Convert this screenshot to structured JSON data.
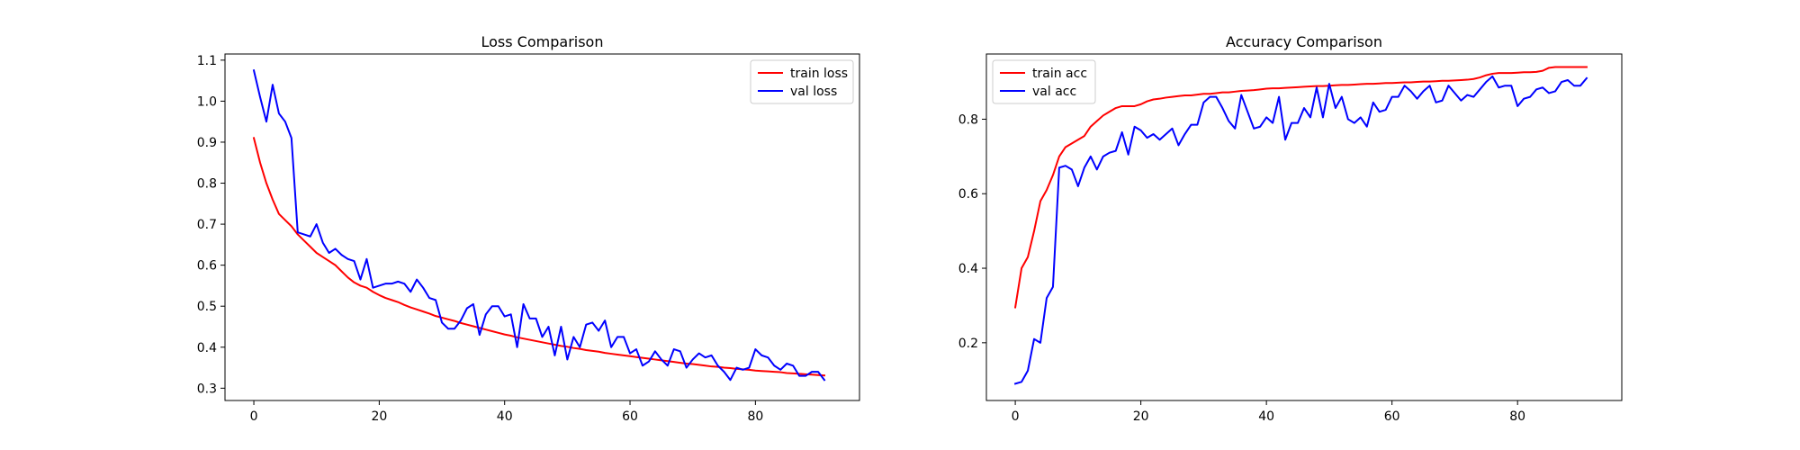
{
  "chart_data": [
    {
      "type": "line",
      "title": "Loss Comparison",
      "xlabel": "",
      "ylabel": "",
      "xlim": [
        -4.6,
        96.6
      ],
      "ylim": [
        0.27,
        1.115
      ],
      "xticks": [
        0,
        20,
        40,
        60,
        80
      ],
      "yticks": [
        0.3,
        0.4,
        0.5,
        0.6,
        0.7,
        0.8,
        0.9,
        1.0,
        1.1
      ],
      "ytick_labels": [
        "0.3",
        "0.4",
        "0.5",
        "0.6",
        "0.7",
        "0.8",
        "0.9",
        "1.0",
        "1.1"
      ],
      "grid": false,
      "legend": "top-right",
      "series": [
        {
          "name": "train loss",
          "color": "#ff0000",
          "x": [
            0,
            1,
            2,
            3,
            4,
            5,
            6,
            7,
            8,
            9,
            10,
            11,
            12,
            13,
            14,
            15,
            16,
            17,
            18,
            19,
            20,
            21,
            22,
            23,
            24,
            25,
            26,
            27,
            28,
            29,
            30,
            31,
            32,
            33,
            34,
            35,
            36,
            37,
            38,
            39,
            40,
            41,
            42,
            43,
            44,
            45,
            46,
            47,
            48,
            49,
            50,
            51,
            52,
            53,
            54,
            55,
            56,
            57,
            58,
            59,
            60,
            61,
            62,
            63,
            64,
            65,
            66,
            67,
            68,
            69,
            70,
            71,
            72,
            73,
            74,
            75,
            76,
            77,
            78,
            79,
            80,
            81,
            82,
            83,
            84,
            85,
            86,
            87,
            88,
            89,
            90,
            91
          ],
          "y": [
            0.91,
            0.85,
            0.8,
            0.76,
            0.725,
            0.71,
            0.695,
            0.675,
            0.66,
            0.645,
            0.63,
            0.62,
            0.61,
            0.6,
            0.585,
            0.57,
            0.558,
            0.55,
            0.545,
            0.535,
            0.527,
            0.52,
            0.515,
            0.51,
            0.503,
            0.497,
            0.492,
            0.487,
            0.482,
            0.476,
            0.472,
            0.468,
            0.464,
            0.459,
            0.455,
            0.451,
            0.447,
            0.443,
            0.439,
            0.435,
            0.431,
            0.428,
            0.424,
            0.421,
            0.418,
            0.415,
            0.412,
            0.409,
            0.406,
            0.403,
            0.401,
            0.398,
            0.396,
            0.393,
            0.391,
            0.389,
            0.386,
            0.384,
            0.382,
            0.38,
            0.378,
            0.376,
            0.374,
            0.372,
            0.37,
            0.368,
            0.366,
            0.364,
            0.362,
            0.36,
            0.359,
            0.357,
            0.355,
            0.353,
            0.352,
            0.35,
            0.349,
            0.347,
            0.346,
            0.345,
            0.343,
            0.342,
            0.341,
            0.34,
            0.339,
            0.337,
            0.336,
            0.335,
            0.334,
            0.333,
            0.332,
            0.331
          ]
        },
        {
          "name": "val loss",
          "color": "#0000ff",
          "x": [
            0,
            1,
            2,
            3,
            4,
            5,
            6,
            7,
            8,
            9,
            10,
            11,
            12,
            13,
            14,
            15,
            16,
            17,
            18,
            19,
            20,
            21,
            22,
            23,
            24,
            25,
            26,
            27,
            28,
            29,
            30,
            31,
            32,
            33,
            34,
            35,
            36,
            37,
            38,
            39,
            40,
            41,
            42,
            43,
            44,
            45,
            46,
            47,
            48,
            49,
            50,
            51,
            52,
            53,
            54,
            55,
            56,
            57,
            58,
            59,
            60,
            61,
            62,
            63,
            64,
            65,
            66,
            67,
            68,
            69,
            70,
            71,
            72,
            73,
            74,
            75,
            76,
            77,
            78,
            79,
            80,
            81,
            82,
            83,
            84,
            85,
            86,
            87,
            88,
            89,
            90,
            91
          ],
          "y": [
            1.075,
            1.01,
            0.95,
            1.04,
            0.97,
            0.95,
            0.91,
            0.68,
            0.675,
            0.67,
            0.7,
            0.655,
            0.63,
            0.64,
            0.625,
            0.615,
            0.61,
            0.565,
            0.615,
            0.545,
            0.55,
            0.555,
            0.555,
            0.56,
            0.555,
            0.535,
            0.565,
            0.545,
            0.52,
            0.515,
            0.46,
            0.445,
            0.445,
            0.465,
            0.495,
            0.505,
            0.43,
            0.48,
            0.5,
            0.5,
            0.475,
            0.48,
            0.4,
            0.505,
            0.47,
            0.47,
            0.425,
            0.45,
            0.38,
            0.45,
            0.37,
            0.425,
            0.4,
            0.455,
            0.46,
            0.44,
            0.465,
            0.4,
            0.425,
            0.425,
            0.385,
            0.395,
            0.355,
            0.365,
            0.39,
            0.37,
            0.355,
            0.395,
            0.39,
            0.35,
            0.37,
            0.385,
            0.375,
            0.38,
            0.355,
            0.34,
            0.32,
            0.35,
            0.345,
            0.35,
            0.395,
            0.38,
            0.375,
            0.355,
            0.345,
            0.36,
            0.355,
            0.33,
            0.33,
            0.34,
            0.34,
            0.32
          ]
        }
      ]
    },
    {
      "type": "line",
      "title": "Accuracy Comparison",
      "xlabel": "",
      "ylabel": "",
      "xlim": [
        -4.6,
        96.6
      ],
      "ylim": [
        0.045,
        0.975
      ],
      "xticks": [
        0,
        20,
        40,
        60,
        80
      ],
      "yticks": [
        0.2,
        0.4,
        0.6,
        0.8
      ],
      "ytick_labels": [
        "0.2",
        "0.4",
        "0.6",
        "0.8"
      ],
      "grid": false,
      "legend": "top-left",
      "series": [
        {
          "name": "train acc",
          "color": "#ff0000",
          "x": [
            0,
            1,
            2,
            3,
            4,
            5,
            6,
            7,
            8,
            9,
            10,
            11,
            12,
            13,
            14,
            15,
            16,
            17,
            18,
            19,
            20,
            21,
            22,
            23,
            24,
            25,
            26,
            27,
            28,
            29,
            30,
            31,
            32,
            33,
            34,
            35,
            36,
            37,
            38,
            39,
            40,
            41,
            42,
            43,
            44,
            45,
            46,
            47,
            48,
            49,
            50,
            51,
            52,
            53,
            54,
            55,
            56,
            57,
            58,
            59,
            60,
            61,
            62,
            63,
            64,
            65,
            66,
            67,
            68,
            69,
            70,
            71,
            72,
            73,
            74,
            75,
            76,
            77,
            78,
            79,
            80,
            81,
            82,
            83,
            84,
            85,
            86,
            87,
            88,
            89,
            90,
            91
          ],
          "y": [
            0.295,
            0.4,
            0.43,
            0.5,
            0.58,
            0.61,
            0.65,
            0.7,
            0.725,
            0.735,
            0.745,
            0.755,
            0.78,
            0.795,
            0.81,
            0.82,
            0.83,
            0.835,
            0.835,
            0.835,
            0.84,
            0.848,
            0.853,
            0.855,
            0.858,
            0.86,
            0.862,
            0.864,
            0.864,
            0.866,
            0.868,
            0.868,
            0.87,
            0.872,
            0.872,
            0.874,
            0.876,
            0.877,
            0.878,
            0.88,
            0.882,
            0.883,
            0.883,
            0.884,
            0.885,
            0.886,
            0.887,
            0.888,
            0.889,
            0.889,
            0.89,
            0.891,
            0.892,
            0.892,
            0.893,
            0.894,
            0.895,
            0.895,
            0.896,
            0.897,
            0.897,
            0.898,
            0.899,
            0.899,
            0.9,
            0.901,
            0.901,
            0.902,
            0.903,
            0.903,
            0.904,
            0.905,
            0.906,
            0.908,
            0.912,
            0.918,
            0.922,
            0.924,
            0.924,
            0.924,
            0.925,
            0.926,
            0.926,
            0.927,
            0.93,
            0.938,
            0.94,
            0.94,
            0.94,
            0.94,
            0.94,
            0.94
          ]
        },
        {
          "name": "val acc",
          "color": "#0000ff",
          "x": [
            0,
            1,
            2,
            3,
            4,
            5,
            6,
            7,
            8,
            9,
            10,
            11,
            12,
            13,
            14,
            15,
            16,
            17,
            18,
            19,
            20,
            21,
            22,
            23,
            24,
            25,
            26,
            27,
            28,
            29,
            30,
            31,
            32,
            33,
            34,
            35,
            36,
            37,
            38,
            39,
            40,
            41,
            42,
            43,
            44,
            45,
            46,
            47,
            48,
            49,
            50,
            51,
            52,
            53,
            54,
            55,
            56,
            57,
            58,
            59,
            60,
            61,
            62,
            63,
            64,
            65,
            66,
            67,
            68,
            69,
            70,
            71,
            72,
            73,
            74,
            75,
            76,
            77,
            78,
            79,
            80,
            81,
            82,
            83,
            84,
            85,
            86,
            87,
            88,
            89,
            90,
            91
          ],
          "y": [
            0.09,
            0.095,
            0.125,
            0.21,
            0.2,
            0.32,
            0.35,
            0.67,
            0.675,
            0.665,
            0.62,
            0.67,
            0.7,
            0.665,
            0.7,
            0.71,
            0.715,
            0.765,
            0.705,
            0.78,
            0.77,
            0.75,
            0.76,
            0.745,
            0.76,
            0.775,
            0.73,
            0.76,
            0.785,
            0.785,
            0.845,
            0.86,
            0.86,
            0.83,
            0.795,
            0.775,
            0.865,
            0.82,
            0.775,
            0.78,
            0.805,
            0.79,
            0.86,
            0.745,
            0.79,
            0.79,
            0.83,
            0.805,
            0.885,
            0.805,
            0.895,
            0.83,
            0.86,
            0.8,
            0.79,
            0.805,
            0.78,
            0.845,
            0.82,
            0.825,
            0.86,
            0.86,
            0.89,
            0.875,
            0.855,
            0.875,
            0.89,
            0.845,
            0.85,
            0.89,
            0.87,
            0.85,
            0.865,
            0.86,
            0.88,
            0.9,
            0.915,
            0.885,
            0.89,
            0.89,
            0.835,
            0.855,
            0.86,
            0.88,
            0.885,
            0.87,
            0.875,
            0.9,
            0.905,
            0.89,
            0.89,
            0.91
          ]
        }
      ]
    }
  ]
}
